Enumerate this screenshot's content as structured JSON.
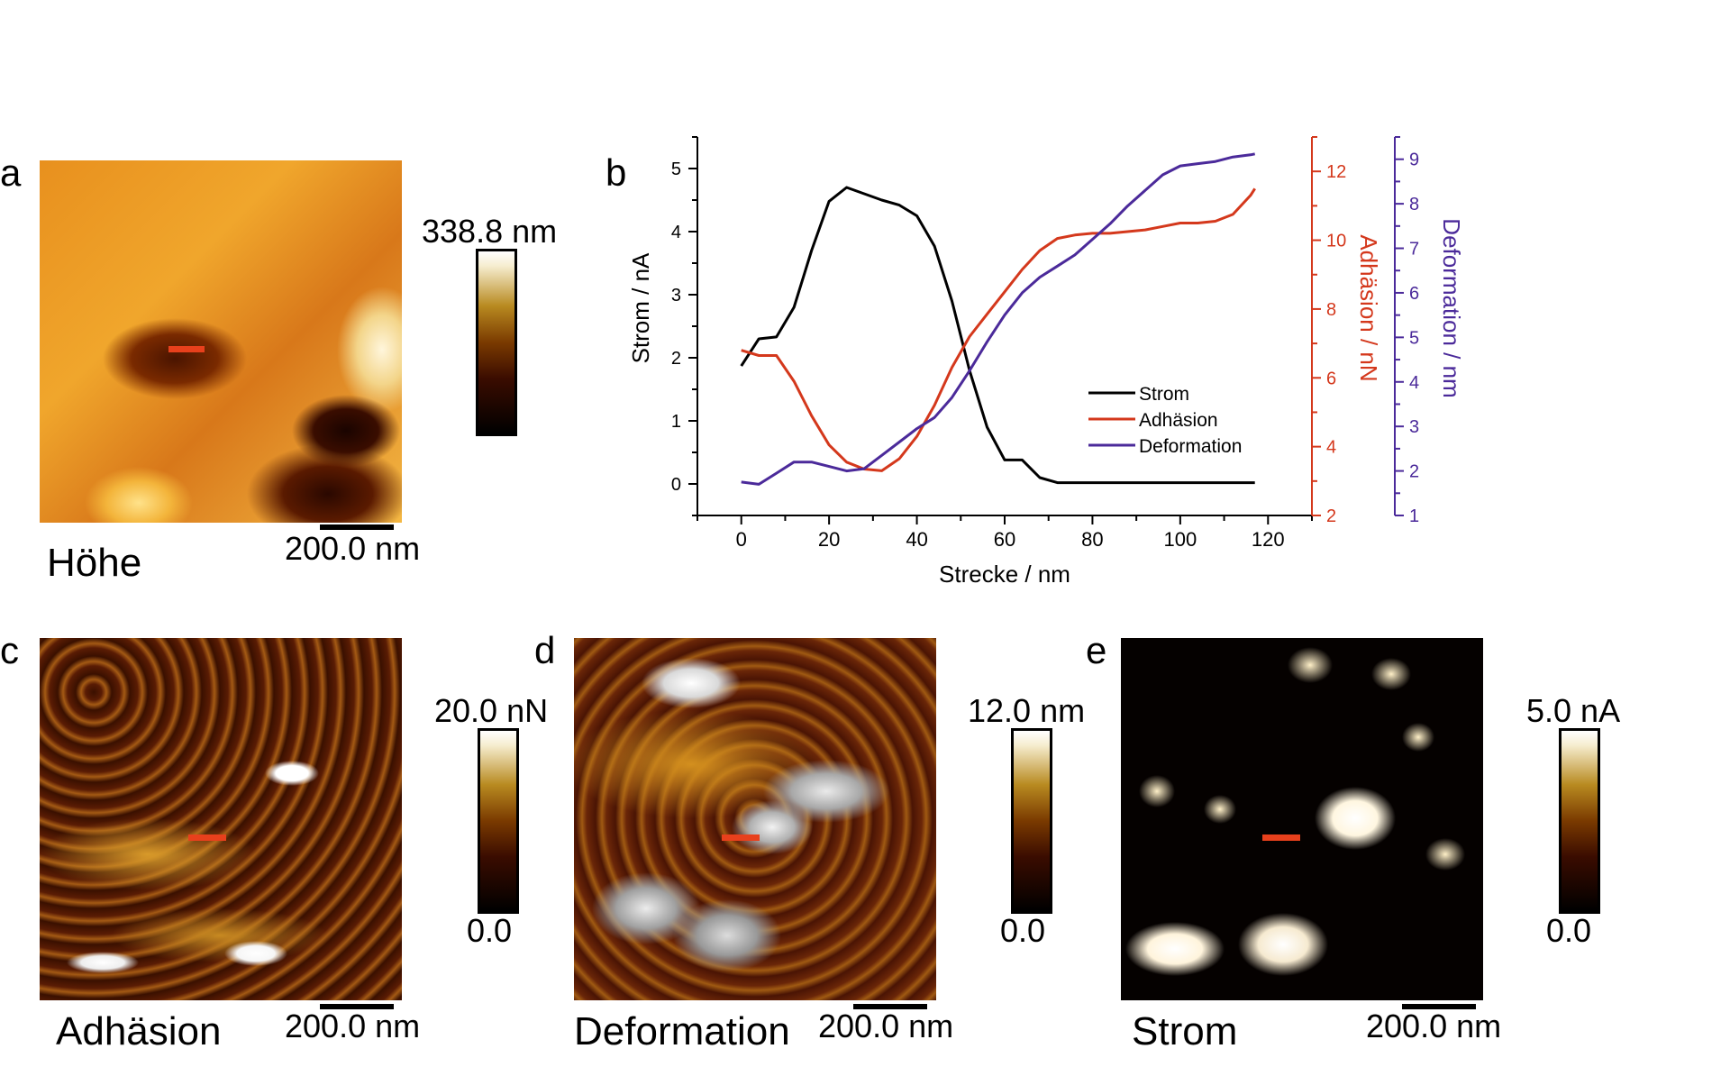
{
  "panels": {
    "a": {
      "letter": "a",
      "title": "Höhe",
      "colorbar_max": "338.8 nm",
      "scalebar": "200.0 nm"
    },
    "b": {
      "letter": "b"
    },
    "c": {
      "letter": "c",
      "title": "Adhäsion",
      "colorbar_max": "20.0 nN",
      "colorbar_min": "0.0",
      "scalebar": "200.0 nm"
    },
    "d": {
      "letter": "d",
      "title": "Deformation",
      "colorbar_max": "12.0 nm",
      "colorbar_min": "0.0",
      "scalebar": "200.0 nm"
    },
    "e": {
      "letter": "e",
      "title": "Strom",
      "colorbar_max": "5.0 nA",
      "colorbar_min": "0.0",
      "scalebar": "200.0 nm"
    }
  },
  "colors": {
    "strom": "#000000",
    "adhaesion": "#d4381c",
    "deformation": "#4b2a9a",
    "marker": "#e8401c"
  },
  "chart_data": {
    "type": "line",
    "xlabel": "Strecke / nm",
    "xlim": [
      -10,
      130
    ],
    "xticks": [
      0,
      20,
      40,
      60,
      80,
      100,
      120
    ],
    "axes": [
      {
        "key": "strom",
        "label": "Strom / nA",
        "side": "left",
        "ylim": [
          -0.5,
          5.5
        ],
        "ticks": [
          0,
          1,
          2,
          3,
          4,
          5
        ]
      },
      {
        "key": "adhaesion",
        "label": "Adhäsion / nN",
        "side": "right",
        "ylim": [
          2,
          13
        ],
        "ticks": [
          2,
          4,
          6,
          8,
          10,
          12
        ]
      },
      {
        "key": "deformation",
        "label": "Deformation / nm",
        "side": "right",
        "ylim": [
          1,
          9.5
        ],
        "ticks": [
          1,
          2,
          3,
          4,
          5,
          6,
          7,
          8,
          9
        ]
      }
    ],
    "legend": {
      "position": "lower-right"
    },
    "series": [
      {
        "name": "Strom",
        "axis": "strom",
        "x": [
          0,
          4,
          8,
          12,
          16,
          20,
          24,
          28,
          32,
          36,
          40,
          44,
          48,
          52,
          56,
          60,
          64,
          68,
          72,
          76,
          80,
          90,
          100,
          110,
          117
        ],
        "y": [
          1.87,
          2.3,
          2.33,
          2.8,
          3.7,
          4.48,
          4.7,
          4.6,
          4.5,
          4.42,
          4.25,
          3.77,
          2.9,
          1.8,
          0.9,
          0.38,
          0.38,
          0.1,
          0.02,
          0.02,
          0.02,
          0.02,
          0.02,
          0.02,
          0.02
        ]
      },
      {
        "name": "Adhäsion",
        "axis": "adhaesion",
        "x": [
          0,
          4,
          8,
          12,
          16,
          20,
          24,
          28,
          32,
          36,
          40,
          44,
          48,
          52,
          56,
          60,
          64,
          68,
          72,
          76,
          80,
          84,
          88,
          92,
          96,
          100,
          104,
          108,
          112,
          116,
          117
        ],
        "y": [
          6.8,
          6.65,
          6.65,
          5.9,
          4.9,
          4.05,
          3.55,
          3.35,
          3.3,
          3.65,
          4.3,
          5.2,
          6.3,
          7.2,
          7.85,
          8.5,
          9.15,
          9.7,
          10.05,
          10.15,
          10.2,
          10.2,
          10.25,
          10.3,
          10.4,
          10.5,
          10.5,
          10.55,
          10.75,
          11.3,
          11.5
        ]
      },
      {
        "name": "Deformation",
        "axis": "deformation",
        "x": [
          0,
          4,
          8,
          12,
          16,
          20,
          24,
          28,
          32,
          36,
          40,
          44,
          48,
          52,
          56,
          60,
          64,
          68,
          72,
          76,
          80,
          84,
          88,
          92,
          96,
          100,
          104,
          108,
          112,
          116,
          117
        ],
        "y": [
          1.75,
          1.7,
          1.95,
          2.2,
          2.2,
          2.1,
          2.0,
          2.05,
          2.35,
          2.65,
          2.95,
          3.2,
          3.65,
          4.25,
          4.9,
          5.5,
          6.0,
          6.35,
          6.6,
          6.85,
          7.2,
          7.55,
          7.95,
          8.3,
          8.65,
          8.85,
          8.9,
          8.95,
          9.05,
          9.1,
          9.12
        ]
      }
    ]
  }
}
